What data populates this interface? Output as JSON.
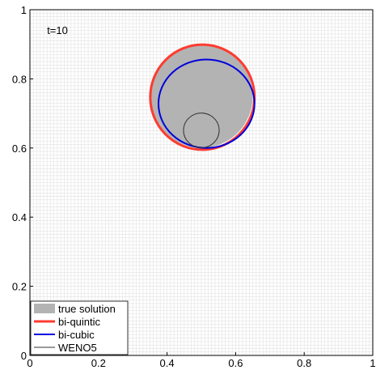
{
  "chart_data": {
    "type": "line",
    "title": "",
    "xlabel": "",
    "ylabel": "",
    "xlim": [
      0,
      1
    ],
    "ylim": [
      0,
      1
    ],
    "x_ticks": [
      "0",
      "0.2",
      "0.4",
      "0.6",
      "0.8",
      "1"
    ],
    "y_ticks": [
      "0",
      "0.2",
      "0.4",
      "0.6",
      "0.8",
      "1"
    ],
    "grid": true,
    "annotation": "t=10",
    "legend_position": "bottom-left",
    "series": [
      {
        "name": "true solution",
        "style": "filled-area",
        "color": "#b3b3b3",
        "shape": "circle",
        "center": [
          0.5,
          0.75
        ],
        "radius": 0.15
      },
      {
        "name": "bi-quintic",
        "style": "line",
        "color": "#ff3b30",
        "shape": "circle",
        "center": [
          0.503,
          0.747
        ],
        "radius": 0.152
      },
      {
        "name": "bi-cubic",
        "style": "line",
        "color": "#0000dd",
        "shape": "ellipse",
        "center": [
          0.515,
          0.728
        ],
        "radius": [
          0.14,
          0.128
        ]
      },
      {
        "name": "WENO5",
        "style": "line",
        "color": "#333333",
        "shape": "ellipse",
        "center": [
          0.5,
          0.651
        ],
        "radius": [
          0.052,
          0.05
        ]
      }
    ]
  }
}
